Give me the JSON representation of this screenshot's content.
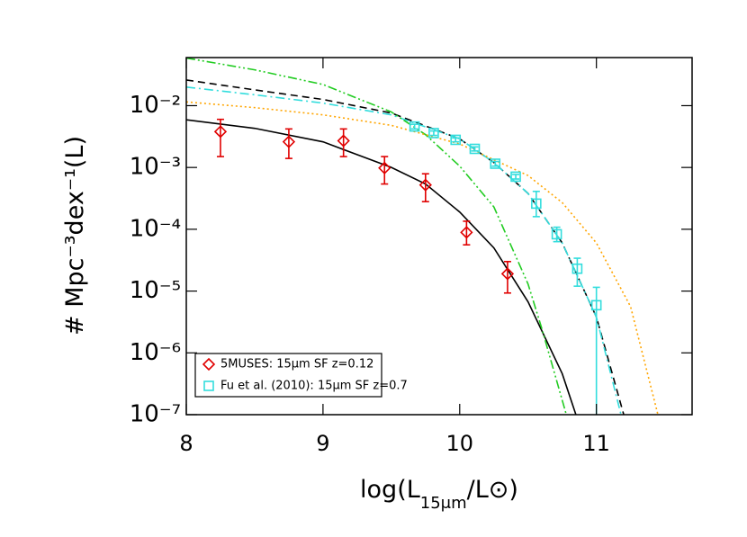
{
  "chart_data": {
    "type": "scatter",
    "x_label": [
      "log(L",
      "15μm",
      "/L⊙)"
    ],
    "y_label": "# Mpc⁻³dex⁻¹(L)",
    "xlim": [
      8,
      11.7
    ],
    "ylim": [
      1e-07,
      0.06
    ],
    "log_y": true,
    "xticks": [
      8,
      9,
      10,
      11
    ],
    "yticks": [
      {
        "value": 1e-07,
        "label": "10⁻⁷"
      },
      {
        "value": 1e-06,
        "label": "10⁻⁶"
      },
      {
        "value": 1e-05,
        "label": "10⁻⁵"
      },
      {
        "value": 0.0001,
        "label": "10⁻⁴"
      },
      {
        "value": 0.001,
        "label": "10⁻³"
      },
      {
        "value": 0.01,
        "label": "10⁻²"
      }
    ],
    "legend_position": "lower left",
    "series": [
      {
        "color": "#000000",
        "dash": "solid",
        "x": [
          8.0,
          8.5,
          9.0,
          9.5,
          9.75,
          10.0,
          10.25,
          10.5,
          10.75,
          10.85
        ],
        "values": [
          0.0059,
          0.0043,
          0.0026,
          0.001,
          0.00054,
          0.00019,
          5e-05,
          6.7e-06,
          4.6e-07,
          1e-07
        ]
      },
      {
        "color": "#000000",
        "dash": "dashed",
        "x": [
          8.0,
          8.5,
          9.0,
          9.5,
          10.0,
          10.25,
          10.5,
          10.75,
          11.0,
          11.2
        ],
        "values": [
          0.026,
          0.018,
          0.0126,
          0.0076,
          0.0029,
          0.0012,
          0.00038,
          6e-05,
          3.8e-06,
          1e-07
        ]
      },
      {
        "color": "#33dddd",
        "dash": "dashdot",
        "x": [
          8.0,
          8.5,
          9.0,
          9.5,
          10.0,
          10.25,
          10.5,
          10.75,
          11.0,
          11.18
        ],
        "values": [
          0.02,
          0.015,
          0.011,
          0.0071,
          0.0029,
          0.0012,
          0.00038,
          6e-05,
          3.8e-06,
          1e-07
        ]
      },
      {
        "color": "#22cc22",
        "dash": "dashdotdot",
        "x": [
          8.0,
          8.5,
          9.0,
          9.5,
          9.75,
          10.0,
          10.25,
          10.5,
          10.6,
          10.78
        ],
        "values": [
          0.059,
          0.038,
          0.022,
          0.0079,
          0.0034,
          0.00105,
          0.00023,
          1.3e-05,
          2.5e-06,
          1e-07
        ]
      },
      {
        "color": "#ffa500",
        "dash": "dotted",
        "x": [
          8.0,
          8.5,
          9.0,
          9.5,
          10.0,
          10.5,
          10.75,
          11.0,
          11.25,
          11.45
        ],
        "values": [
          0.0115,
          0.0093,
          0.0071,
          0.0048,
          0.0024,
          0.00074,
          0.00027,
          6e-05,
          5.6e-06,
          1e-07
        ]
      },
      {
        "name": "5MUSES: 15μm SF z=0.12",
        "color": "#e00000",
        "marker": "diamond",
        "x": [
          8.25,
          8.75,
          9.15,
          9.45,
          9.75,
          10.05,
          10.35
        ],
        "values": [
          0.0038,
          0.0026,
          0.0027,
          0.00098,
          0.00052,
          8.9e-05,
          1.9e-05
        ],
        "error_low": [
          0.0015,
          0.0014,
          0.0015,
          0.00054,
          0.00028,
          5.6e-05,
          9.3e-06
        ],
        "error_high": [
          0.006,
          0.0042,
          0.0042,
          0.0015,
          0.00079,
          0.000135,
          3e-05
        ]
      },
      {
        "name": "Fu et al. (2010): 15μm SF z=0.7",
        "color": "#33dddd",
        "marker": "square",
        "x": [
          9.67,
          9.81,
          9.97,
          10.11,
          10.26,
          10.41,
          10.56,
          10.71,
          10.86,
          11.0
        ],
        "values": [
          0.0046,
          0.0036,
          0.0028,
          0.002,
          0.00115,
          0.00071,
          0.00026,
          8.3e-05,
          2.3e-05,
          5.9e-06
        ],
        "error_low": [
          0.0042,
          0.0033,
          0.0026,
          0.00185,
          0.00105,
          0.00065,
          0.00016,
          6.3e-05,
          1.2e-05,
          1e-08
        ],
        "error_high": [
          0.005,
          0.0039,
          0.003,
          0.00215,
          0.00125,
          0.00077,
          0.00041,
          0.000108,
          3.4e-05,
          1.15e-05
        ]
      }
    ]
  }
}
